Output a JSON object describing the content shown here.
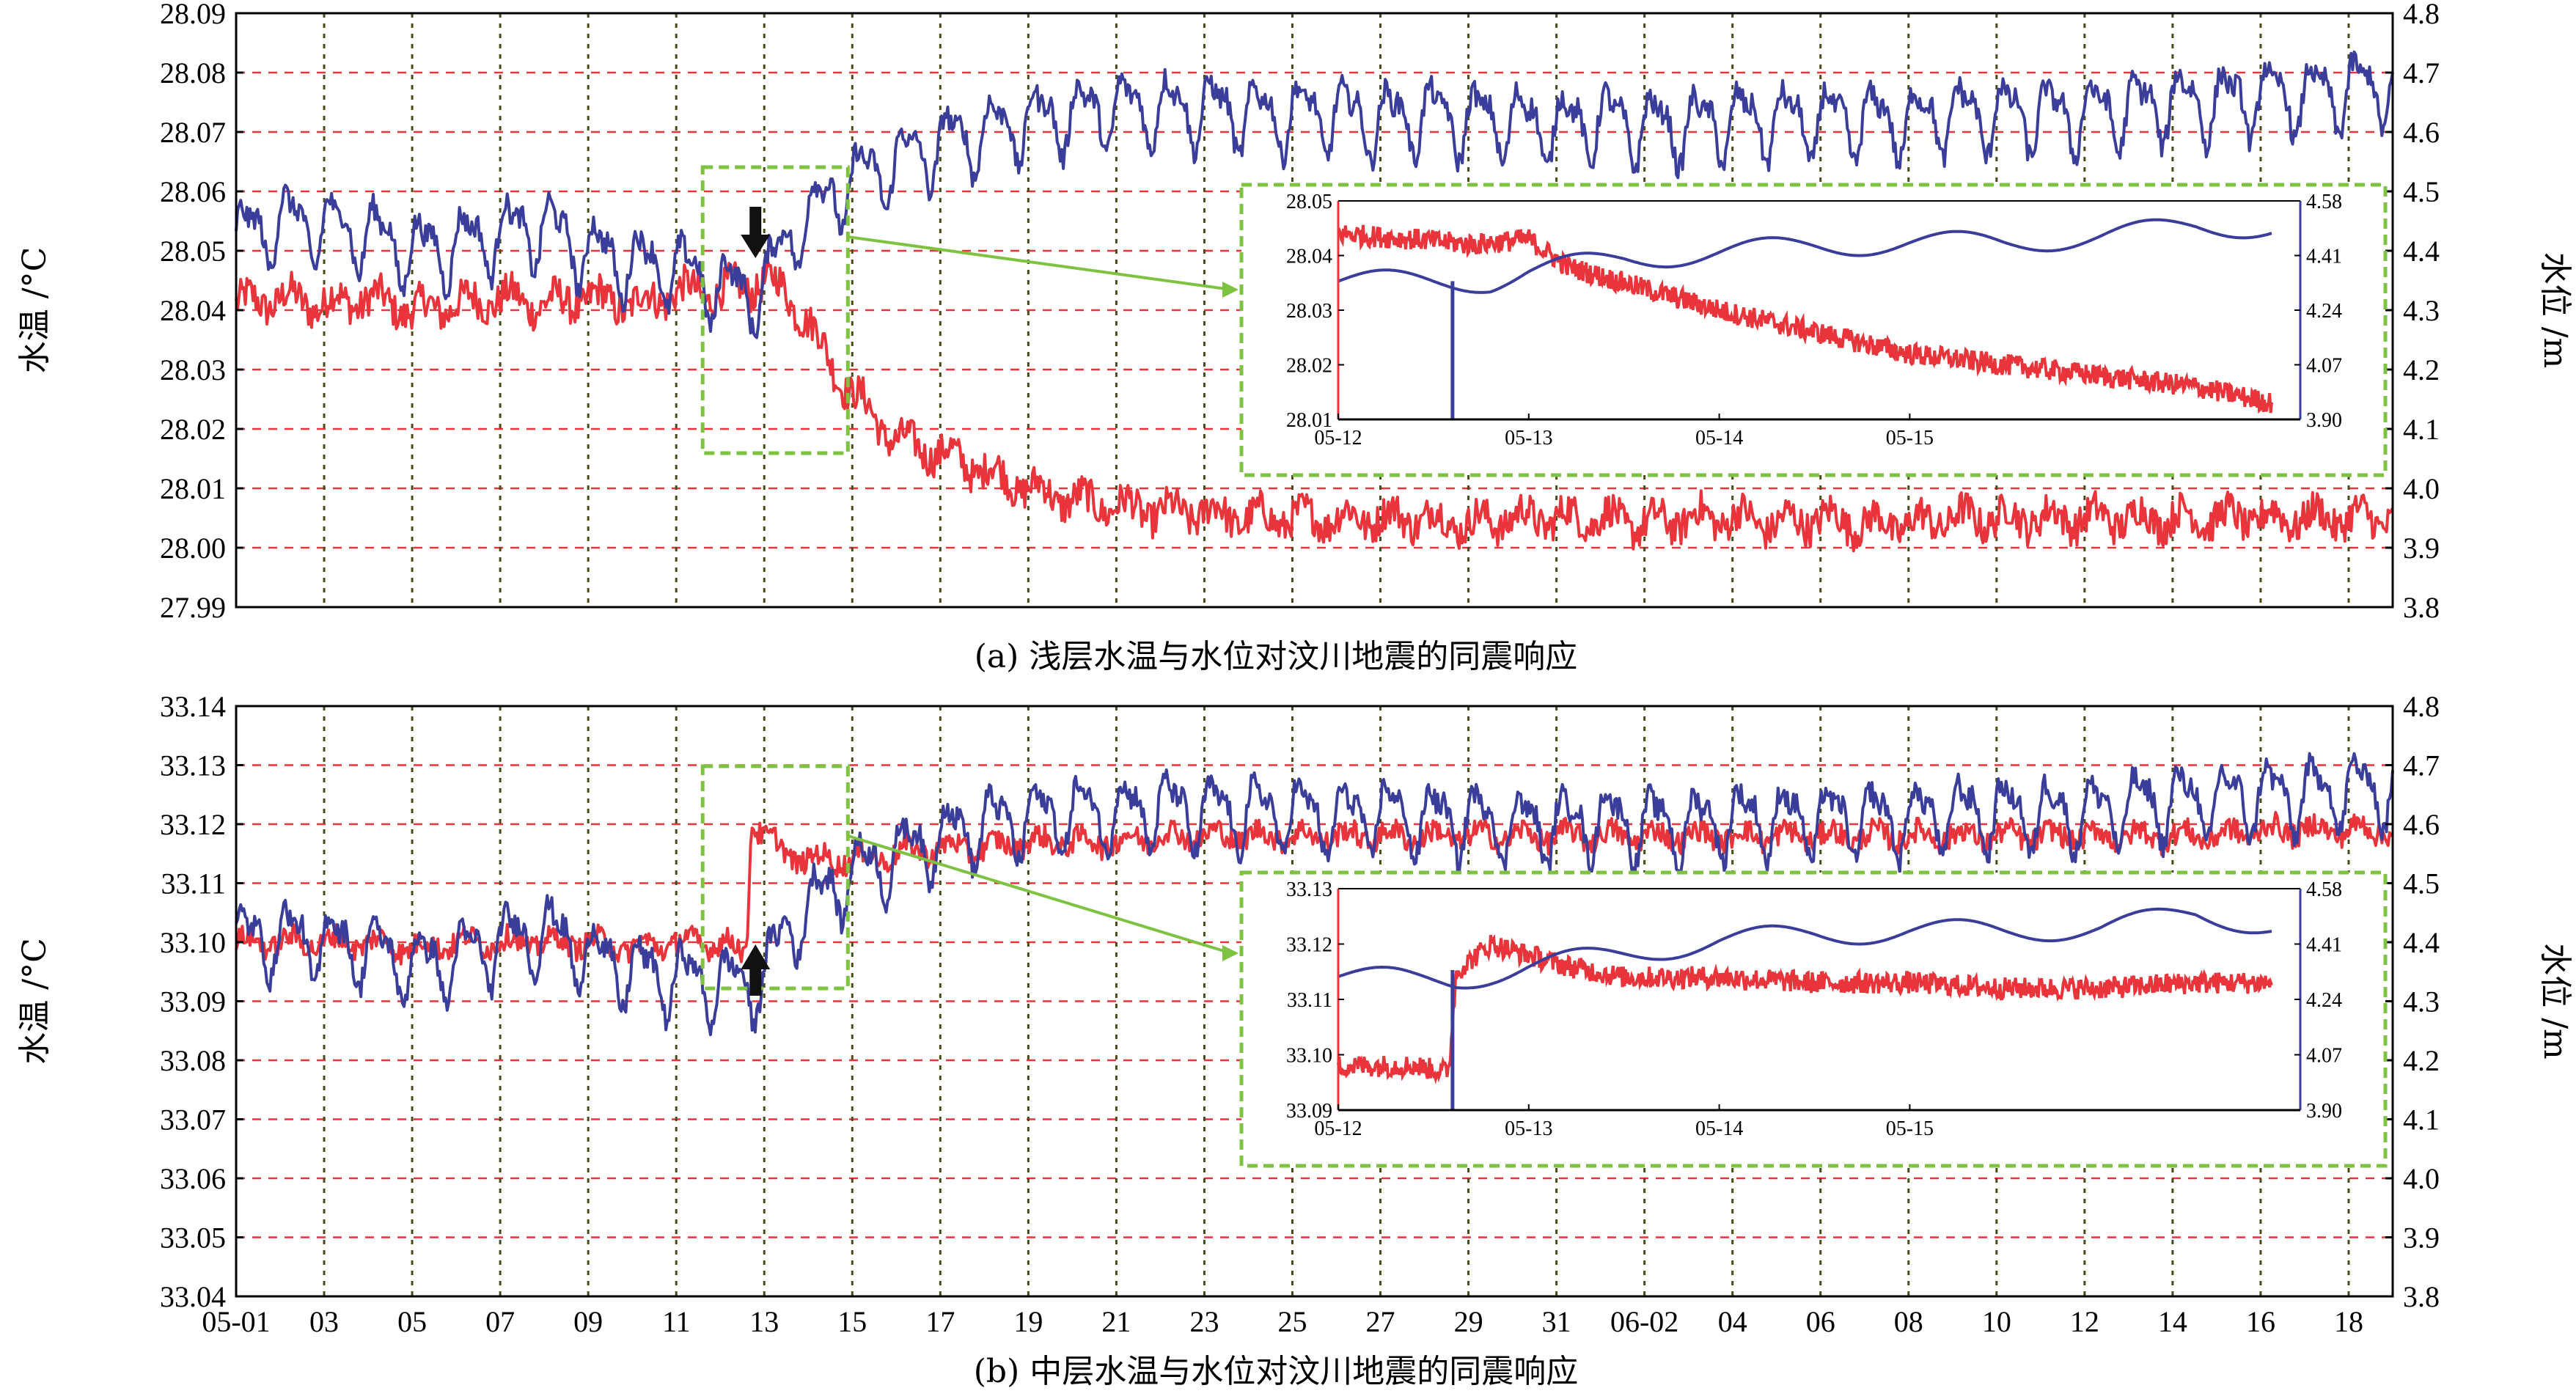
{
  "chart_data": [
    {
      "panel": "a",
      "type": "line",
      "caption": "(a) 浅层水温与水位对汶川地震的同震响应",
      "ylabel_left": "水温 /°C",
      "ylabel_right": "水位 /m",
      "ylim_left": [
        27.99,
        28.09
      ],
      "ylim_right": [
        3.8,
        4.8
      ],
      "yticks_left": [
        "27.99",
        "28.00",
        "28.01",
        "28.02",
        "28.03",
        "28.04",
        "28.05",
        "28.06",
        "28.07",
        "28.08",
        "28.09"
      ],
      "yticks_right": [
        "3.8",
        "3.9",
        "4.0",
        "4.1",
        "4.2",
        "4.3",
        "4.4",
        "4.5",
        "4.6",
        "4.7",
        "4.8"
      ],
      "x_range_days": [
        0,
        49
      ],
      "xticks_shown": false,
      "colors": {
        "temperature": "#e8343a",
        "water_level": "#3a3e9a",
        "grid_h": "#e8343a",
        "grid_v": "#4a4a1a",
        "zoom_box": "#7ec242"
      },
      "series": [
        {
          "key": "temperature",
          "axis": "left",
          "x": [
            0,
            1,
            2,
            3,
            4,
            5,
            6,
            7,
            8,
            9,
            10,
            11,
            11.6,
            12.0,
            12.5,
            13,
            13.5,
            14,
            14.5,
            15,
            16,
            17,
            18,
            19,
            20,
            21,
            22,
            23,
            24,
            25,
            26,
            27,
            28,
            29,
            30,
            31,
            32,
            33,
            34,
            35,
            36,
            37,
            38,
            39,
            40,
            41,
            42,
            43,
            44,
            45,
            46,
            47,
            48,
            49
          ],
          "y": [
            28.041,
            28.042,
            28.041,
            28.042,
            28.04,
            28.041,
            28.042,
            28.041,
            28.042,
            28.041,
            28.043,
            28.043,
            28.044,
            28.045,
            28.043,
            28.038,
            28.031,
            28.026,
            28.022,
            28.018,
            28.016,
            28.013,
            28.01,
            28.008,
            28.007,
            28.006,
            28.006,
            28.005,
            28.005,
            28.005,
            28.005,
            28.005,
            28.004,
            28.005,
            28.005,
            28.005,
            28.004,
            28.005,
            28.005,
            28.004,
            28.005,
            28.004,
            28.004,
            28.005,
            28.005,
            28.005,
            28.005,
            28.005,
            28.005,
            28.005,
            28.005,
            28.005,
            28.005,
            28.005
          ],
          "noise_amplitude": 0.003
        },
        {
          "key": "water_level",
          "axis": "right",
          "x": [
            0,
            1,
            2,
            3,
            4,
            5,
            6,
            7,
            8,
            9,
            10,
            11,
            11.6,
            12.0,
            12.5,
            13,
            13.5,
            14,
            14.5,
            15,
            16,
            17,
            18,
            19,
            20,
            21,
            22,
            23,
            24,
            25,
            26,
            27,
            28,
            29,
            30,
            31,
            32,
            33,
            34,
            35,
            36,
            37,
            38,
            39,
            40,
            41,
            42,
            43,
            44,
            45,
            46,
            47,
            48,
            49
          ],
          "y": [
            4.42,
            4.45,
            4.44,
            4.43,
            4.4,
            4.41,
            4.43,
            4.44,
            4.4,
            4.38,
            4.37,
            4.34,
            4.33,
            4.34,
            4.42,
            4.46,
            4.49,
            4.52,
            4.53,
            4.55,
            4.58,
            4.6,
            4.62,
            4.63,
            4.64,
            4.64,
            4.64,
            4.63,
            4.63,
            4.63,
            4.62,
            4.63,
            4.62,
            4.62,
            4.61,
            4.62,
            4.61,
            4.61,
            4.62,
            4.62,
            4.62,
            4.62,
            4.62,
            4.63,
            4.63,
            4.63,
            4.63,
            4.64,
            4.65,
            4.65,
            4.66,
            4.66,
            4.67,
            4.68
          ],
          "oscillation_amplitude": 0.05
        }
      ],
      "annotations": {
        "arrow_direction": "down",
        "arrow_day": 11.8,
        "zoom_box_days": [
          10.6,
          13.9
        ]
      },
      "inset": {
        "xticks": [
          "05-12",
          "05-13",
          "05-14",
          "05-15"
        ],
        "yticks_left": [
          "28.05",
          "28.04",
          "28.03",
          "28.02",
          "28.01"
        ],
        "yticks_right": [
          "4.58",
          "4.41",
          "4.24",
          "4.07",
          "3.90"
        ],
        "ylim_left": [
          28.01,
          28.05
        ],
        "ylim_right": [
          3.9,
          4.58
        ],
        "temperature": {
          "x": [
            0,
            0.4,
            0.7,
            1.0,
            1.2,
            1.5,
            2.0,
            2.5,
            3.0,
            3.5,
            4.0,
            4.5,
            4.9
          ],
          "y": [
            28.044,
            28.043,
            28.042,
            28.043,
            28.038,
            28.035,
            28.03,
            28.026,
            28.022,
            28.02,
            28.018,
            28.016,
            28.013
          ]
        },
        "water_level": {
          "x": [
            0,
            0.4,
            0.58,
            0.62,
            0.8,
            1.0,
            1.5,
            2.0,
            2.5,
            3.0,
            3.5,
            4.0,
            4.5,
            4.9
          ],
          "y": [
            4.33,
            4.33,
            4.33,
            4.33,
            4.33,
            4.36,
            4.4,
            4.42,
            4.44,
            4.45,
            4.45,
            4.47,
            4.5,
            4.5
          ]
        }
      }
    },
    {
      "panel": "b",
      "type": "line",
      "caption": "(b) 中层水温与水位对汶川地震的同震响应",
      "ylabel_left": "水温 /°C",
      "ylabel_right": "水位 /m",
      "ylim_left": [
        33.04,
        33.14
      ],
      "ylim_right": [
        3.8,
        4.8
      ],
      "yticks_left": [
        "33.04",
        "33.05",
        "33.06",
        "33.07",
        "33.08",
        "33.09",
        "33.10",
        "33.11",
        "33.12",
        "33.13",
        "33.14"
      ],
      "yticks_right": [
        "3.8",
        "3.9",
        "4.0",
        "4.1",
        "4.2",
        "4.3",
        "4.4",
        "4.5",
        "4.6",
        "4.7",
        "4.8"
      ],
      "x_range_days": [
        0,
        49
      ],
      "xticks": [
        "05-01",
        "03",
        "05",
        "07",
        "09",
        "11",
        "13",
        "15",
        "17",
        "19",
        "21",
        "23",
        "25",
        "27",
        "29",
        "31",
        "06-02",
        "04",
        "06",
        "08",
        "10",
        "12",
        "14",
        "16",
        "18"
      ],
      "colors": {
        "temperature": "#e8343a",
        "water_level": "#3a3e9a",
        "grid_h": "#e8343a",
        "grid_v": "#4a4a1a",
        "zoom_box": "#7ec242"
      },
      "series": [
        {
          "key": "temperature",
          "axis": "left",
          "x": [
            0,
            1,
            2,
            3,
            4,
            5,
            6,
            7,
            8,
            9,
            10,
            11,
            11.6,
            11.7,
            12.0,
            12.5,
            13,
            13.5,
            14,
            15,
            16,
            17,
            18,
            19,
            20,
            21,
            22,
            23,
            24,
            25,
            26,
            27,
            28,
            29,
            30,
            31,
            32,
            33,
            34,
            35,
            36,
            37,
            38,
            39,
            40,
            41,
            42,
            43,
            44,
            45,
            46,
            47,
            48,
            49
          ],
          "y": [
            33.1,
            33.1,
            33.1,
            33.1,
            33.099,
            33.1,
            33.1,
            33.1,
            33.1,
            33.099,
            33.1,
            33.1,
            33.098,
            33.121,
            33.118,
            33.115,
            33.114,
            33.114,
            33.114,
            33.115,
            33.116,
            33.116,
            33.117,
            33.117,
            33.117,
            33.118,
            33.118,
            33.118,
            33.118,
            33.118,
            33.118,
            33.118,
            33.118,
            33.118,
            33.118,
            33.118,
            33.118,
            33.118,
            33.118,
            33.118,
            33.118,
            33.118,
            33.118,
            33.118,
            33.118,
            33.118,
            33.118,
            33.118,
            33.118,
            33.118,
            33.119,
            33.119,
            33.119,
            33.119
          ],
          "noise_amplitude": 0.002
        },
        {
          "key": "water_level",
          "axis": "right",
          "x": [
            0,
            1,
            2,
            3,
            4,
            5,
            6,
            7,
            8,
            9,
            10,
            11,
            11.6,
            12.0,
            12.5,
            13,
            13.5,
            14,
            14.5,
            15,
            16,
            17,
            18,
            19,
            20,
            21,
            22,
            23,
            24,
            25,
            26,
            27,
            28,
            29,
            30,
            31,
            32,
            33,
            34,
            35,
            36,
            37,
            38,
            39,
            40,
            41,
            42,
            43,
            44,
            45,
            46,
            47,
            48,
            49
          ],
          "y": [
            4.4,
            4.41,
            4.4,
            4.39,
            4.36,
            4.37,
            4.4,
            4.42,
            4.38,
            4.35,
            4.34,
            4.33,
            4.33,
            4.34,
            4.42,
            4.46,
            4.49,
            4.52,
            4.53,
            4.55,
            4.58,
            4.6,
            4.61,
            4.62,
            4.62,
            4.63,
            4.62,
            4.62,
            4.62,
            4.61,
            4.62,
            4.61,
            4.61,
            4.6,
            4.6,
            4.61,
            4.6,
            4.6,
            4.61,
            4.61,
            4.61,
            4.61,
            4.61,
            4.62,
            4.62,
            4.62,
            4.62,
            4.63,
            4.64,
            4.64,
            4.65,
            4.65,
            4.66,
            4.66
          ],
          "oscillation_amplitude": 0.05
        }
      ],
      "annotations": {
        "arrow_direction": "up",
        "arrow_day": 11.8,
        "zoom_box_days": [
          10.6,
          13.9
        ]
      },
      "inset": {
        "xticks": [
          "05-12",
          "05-13",
          "05-14",
          "05-15"
        ],
        "yticks_left": [
          "33.13",
          "33.12",
          "33.11",
          "33.10",
          "33.09"
        ],
        "yticks_right": [
          "4.58",
          "4.41",
          "4.24",
          "4.07",
          "3.90"
        ],
        "ylim_left": [
          33.09,
          33.13
        ],
        "ylim_right": [
          3.9,
          4.58
        ],
        "temperature": {
          "x": [
            0,
            0.4,
            0.55,
            0.58,
            0.62,
            0.8,
            1.0,
            1.2,
            1.5,
            2.0,
            2.5,
            3.0,
            3.5,
            4.0,
            4.5,
            4.9
          ],
          "y": [
            33.098,
            33.098,
            33.097,
            33.097,
            33.115,
            33.12,
            33.118,
            33.116,
            33.114,
            33.114,
            33.113,
            33.113,
            33.112,
            33.112,
            33.113,
            33.113
          ],
          "note": ""
        },
        "water_level": {
          "x": [
            0,
            0.4,
            0.58,
            0.62,
            0.8,
            1.0,
            1.5,
            2.0,
            2.5,
            3.0,
            3.5,
            4.0,
            4.5,
            4.9
          ],
          "y": [
            4.31,
            4.3,
            4.3,
            4.3,
            4.32,
            4.34,
            4.38,
            4.42,
            4.44,
            4.45,
            4.45,
            4.46,
            4.5,
            4.47
          ]
        }
      }
    }
  ]
}
